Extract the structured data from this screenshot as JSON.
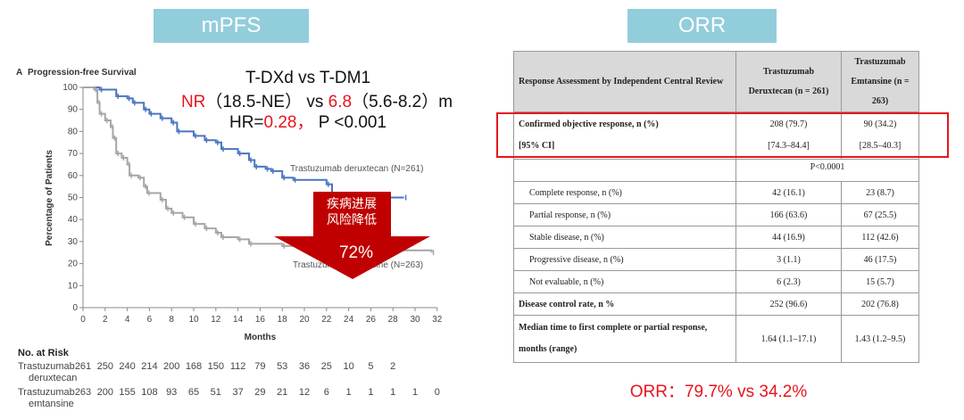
{
  "headers": {
    "left": "mPFS",
    "right": "ORR"
  },
  "annotation": {
    "line1": "T-DXd vs T-DM1",
    "nr": "NR",
    "nr_ci": "（18.5-NE）",
    "vs": " vs ",
    "median2": "6.8",
    "median2_ci": "（5.6-8.2）m",
    "hr_label": "HR=",
    "hr": "0.28，",
    "p": " P <0.001"
  },
  "arrow": {
    "line1": "疾病进展",
    "line2": "风险降低",
    "value": "72%",
    "color": "#c00000"
  },
  "chart_data": {
    "type": "line",
    "panel": "A",
    "title": "Progression-free Survival",
    "xlabel": "Months",
    "ylabel": "Percentage of Patients",
    "xlim": [
      0,
      32
    ],
    "ylim": [
      0,
      100
    ],
    "xticks": [
      0,
      2,
      4,
      6,
      8,
      10,
      12,
      14,
      16,
      18,
      20,
      22,
      24,
      26,
      28,
      30,
      32
    ],
    "yticks": [
      0,
      10,
      20,
      30,
      40,
      50,
      60,
      70,
      80,
      90,
      100
    ],
    "series": [
      {
        "name": "Trastuzumab deruxtecan (N=261)",
        "color": "#4a76c0",
        "x": [
          0,
          1.5,
          3,
          4,
          4.5,
          5.5,
          6,
          7,
          8,
          8.5,
          10,
          11,
          12,
          12.5,
          14,
          15,
          15.5,
          16.5,
          17,
          18,
          19,
          22,
          22.5,
          24,
          29
        ],
        "y": [
          100,
          99,
          96,
          95,
          93,
          90,
          88,
          86,
          84,
          80,
          78,
          76,
          75,
          72,
          70,
          67,
          64,
          63,
          62,
          59,
          58,
          56,
          51,
          50,
          50
        ]
      },
      {
        "name": "Trastuzumab emtansine (N=263)",
        "color": "#a6a6a6",
        "x": [
          0,
          1,
          1.3,
          1.5,
          2,
          2.5,
          2.7,
          3,
          3.5,
          4,
          4.2,
          5,
          5.5,
          5.8,
          7,
          7.5,
          8,
          9,
          10,
          11,
          12,
          12.5,
          14,
          15,
          18,
          20,
          24,
          31.5
        ],
        "y": [
          100,
          99,
          93,
          88,
          85,
          82,
          77,
          70,
          68,
          65,
          60,
          59,
          55,
          52,
          49,
          45,
          43,
          41,
          38,
          36,
          34,
          32,
          31,
          29,
          28,
          27,
          26,
          25
        ]
      }
    ],
    "risk_table": {
      "title": "No. at Risk",
      "rows": [
        {
          "label1": "Trastuzumab",
          "label2": "deruxtecan",
          "values": [
            "261",
            "250",
            "240",
            "214",
            "200",
            "168",
            "150",
            "112",
            "79",
            "53",
            "36",
            "25",
            "10",
            "5",
            "2"
          ]
        },
        {
          "label1": "Trastuzumab",
          "label2": "emtansine",
          "values": [
            "263",
            "200",
            "155",
            "108",
            "93",
            "65",
            "51",
            "37",
            "29",
            "21",
            "12",
            "6",
            "1",
            "1",
            "1",
            "1",
            "0"
          ]
        }
      ]
    }
  },
  "table": {
    "header": [
      "Response Assessment by Independent Central Review",
      "Trastuzumab Deruxtecan (n = 261)",
      "Trastuzumab Emtansine (n = 263)"
    ],
    "orr": {
      "label": "Confirmed objective response, n (%)",
      "ci_label": "[95% CI]",
      "a": "208 (79.7)",
      "b": "90 (34.2)",
      "a_ci": "[74.3–84.4]",
      "b_ci": "[28.5–40.3]"
    },
    "p": "P<0.0001",
    "rows": [
      {
        "label": "Complete response, n (%)",
        "a": "42 (16.1)",
        "b": "23 (8.7)"
      },
      {
        "label": "Partial response, n (%)",
        "a": "166 (63.6)",
        "b": "67 (25.5)"
      },
      {
        "label": "Stable disease, n (%)",
        "a": "44 (16.9)",
        "b": "112 (42.6)"
      },
      {
        "label": "Progressive disease, n (%)",
        "a": "3 (1.1)",
        "b": "46 (17.5)"
      },
      {
        "label": "Not evaluable, n (%)",
        "a": "6 (2.3)",
        "b": "15 (5.7)"
      }
    ],
    "dcr": {
      "label": "Disease control rate, n %",
      "a": "252 (96.6)",
      "b": "202 (76.8)"
    },
    "median": {
      "label": "Median time to first complete or partial response, months (range)",
      "a": "1.64 (1.1–17.1)",
      "b": "1.43 (1.2–9.5)"
    }
  },
  "orr_summary": "ORR：79.7% vs 34.2%"
}
